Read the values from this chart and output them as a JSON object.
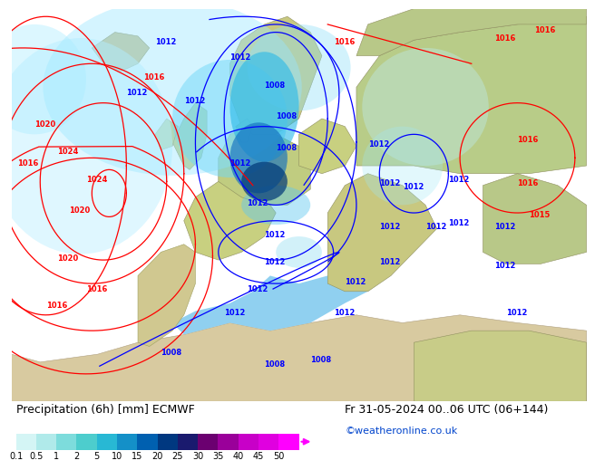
{
  "title_left": "Precipitation (6h) [mm] ECMWF",
  "title_right": "Fr 31-05-2024 00..06 UTC (06+144)",
  "credit": "©weatheronline.co.uk",
  "colorbar_values": [
    0.1,
    0.5,
    1,
    2,
    5,
    10,
    15,
    20,
    25,
    30,
    35,
    40,
    45,
    50
  ],
  "colorbar_colors": [
    "#d4f5f5",
    "#b0eaea",
    "#7ddcdc",
    "#4dcdcd",
    "#28b8d4",
    "#1490c8",
    "#0060b0",
    "#003880",
    "#1a1a6e",
    "#6b0070",
    "#9a009a",
    "#c800c8",
    "#e000e0",
    "#ff00ff"
  ],
  "bg_color": "#ffffff",
  "ocean_color": "#c8efff",
  "land_color": "#e8e0d0",
  "land_green_color": "#c8dc90",
  "precip_light1": "#d4f5f5",
  "precip_light2": "#b0e8f8",
  "precip_med1": "#7dd8f0",
  "precip_med2": "#40c0e8",
  "precip_dark1": "#1490c8",
  "precip_dark2": "#0060b0",
  "precip_dark3": "#003070",
  "title_fontsize": 9,
  "credit_fontsize": 8,
  "tick_fontsize": 7,
  "isobar_fontsize": 6
}
